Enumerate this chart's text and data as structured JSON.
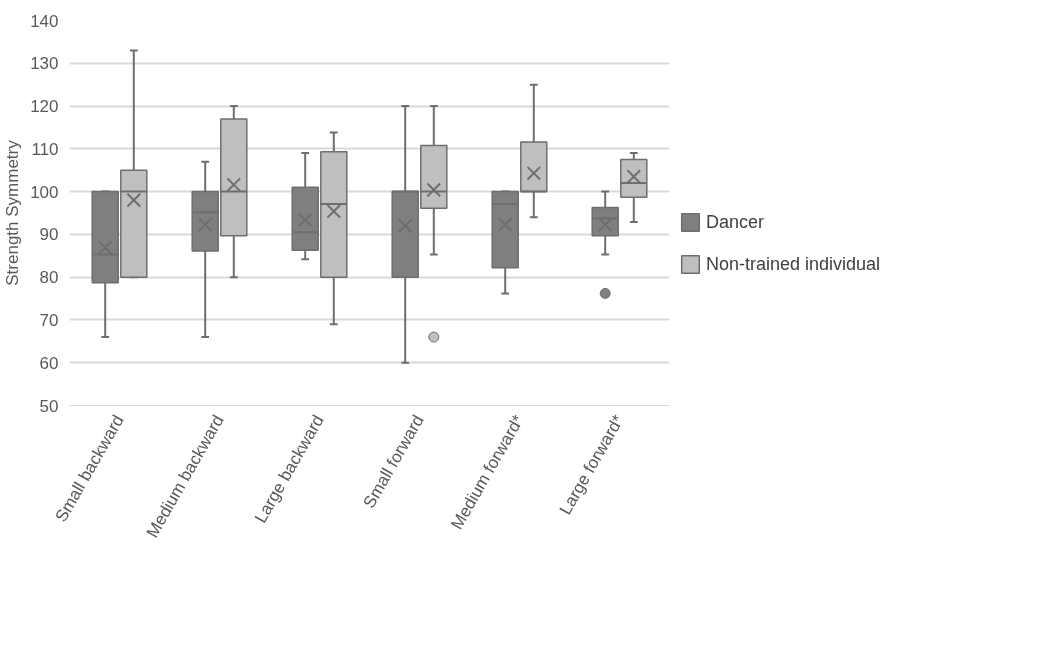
{
  "chart_data": {
    "type": "box",
    "ylabel": "Strength Symmetry",
    "categories": [
      "Small backward",
      "Medium backward",
      "Large backward",
      "Small forward",
      "Medium forward*",
      "Large forward*"
    ],
    "series": [
      {
        "name": "Dancer",
        "color": "#7f7f7f",
        "boxes": [
          {
            "low": 66,
            "q1": 78.7,
            "median": 85.3,
            "q3": 100,
            "high": 100,
            "mean": 86.9
          },
          {
            "low": 66,
            "q1": 86.1,
            "median": 95.2,
            "q3": 100,
            "high": 107,
            "mean": 92.3
          },
          {
            "low": 84.2,
            "q1": 86.3,
            "median": 90.5,
            "q3": 101,
            "high": 109,
            "mean": 93.4
          },
          {
            "low": 60,
            "q1": 80,
            "median": 100,
            "q3": 100,
            "high": 120,
            "mean": 92
          },
          {
            "low": 76.2,
            "q1": 82.2,
            "median": 97.1,
            "q3": 100,
            "high": 100,
            "mean": 92.3
          },
          {
            "low": 85.3,
            "q1": 89.7,
            "median": 93.8,
            "q3": 96.3,
            "high": 100,
            "mean": 92.3,
            "outliers": [
              76.2
            ]
          }
        ]
      },
      {
        "name": "Non-trained individual",
        "color": "#bfbfbf",
        "boxes": [
          {
            "low": 80,
            "q1": 80,
            "median": 100,
            "q3": 105,
            "high": 133,
            "mean": 98
          },
          {
            "low": 80,
            "q1": 89.7,
            "median": 100,
            "q3": 117,
            "high": 120,
            "mean": 101.6
          },
          {
            "low": 69,
            "q1": 80,
            "median": 97.1,
            "q3": 109.3,
            "high": 113.8,
            "mean": 95.4
          },
          {
            "low": 85.3,
            "q1": 96.1,
            "median": 100,
            "q3": 110.8,
            "high": 120,
            "mean": 100.4,
            "outliers": [
              66
            ]
          },
          {
            "low": 94,
            "q1": 100,
            "median": 100,
            "q3": 111.6,
            "high": 125,
            "mean": 104.3
          },
          {
            "low": 92.9,
            "q1": 98.7,
            "median": 102,
            "q3": 107.5,
            "high": 109,
            "mean": 103.5
          }
        ]
      }
    ],
    "ylim": [
      50,
      140
    ],
    "yticks": [
      50,
      60,
      70,
      80,
      90,
      100,
      110,
      120,
      130,
      140
    ],
    "grid": "y",
    "legend": "right"
  }
}
